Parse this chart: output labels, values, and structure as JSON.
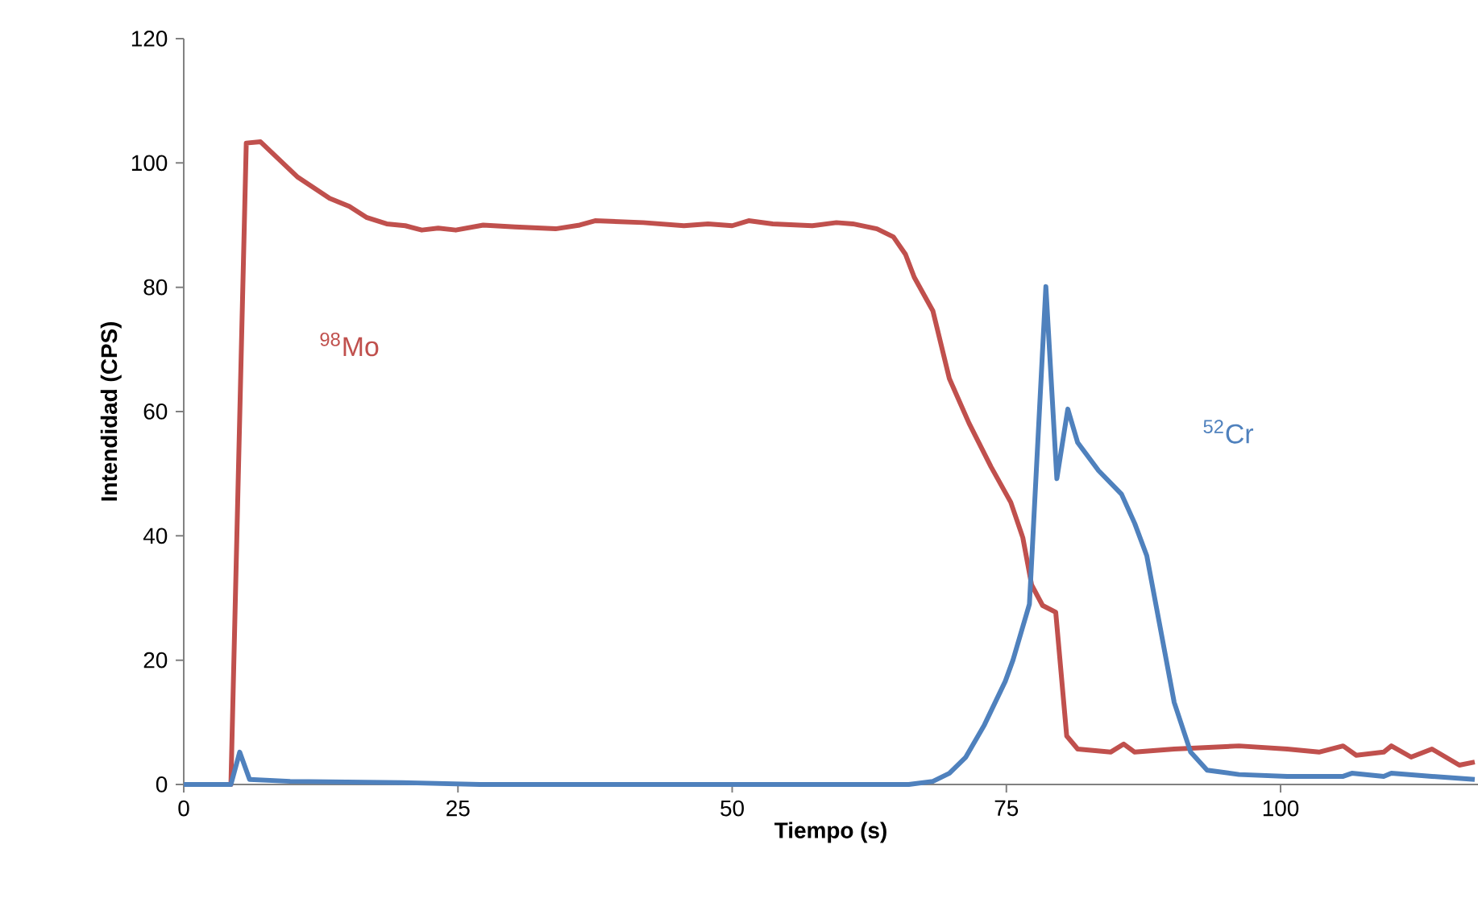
{
  "chart_data": {
    "type": "line",
    "xlabel": "Tiempo (s)",
    "ylabel": "Intendidad (CPS)",
    "xlim": [
      0,
      118
    ],
    "ylim": [
      0,
      120
    ],
    "xticks": [
      0,
      25,
      50,
      75,
      100
    ],
    "yticks": [
      0,
      20,
      40,
      60,
      80,
      100,
      120
    ],
    "grid": false,
    "legend": false,
    "marker": "none",
    "line_style": "solid",
    "series": [
      {
        "name": "$^{98}$Mo",
        "color": "#c0504d",
        "x": [
          0,
          4.3,
          5.7,
          7,
          10.4,
          13.3,
          15.1,
          16.7,
          18.5,
          20.2,
          21.7,
          23.2,
          24.8,
          27.3,
          30.2,
          33.9,
          36.1,
          37.5,
          41.9,
          45.6,
          47.8,
          50,
          51.5,
          53.7,
          57.3,
          59.5,
          61,
          63.2,
          64.7,
          65.8,
          66.6,
          68.3,
          69.8,
          71.6,
          73.6,
          75.4,
          76.5,
          77.3,
          78.3,
          79.5,
          80.5,
          81.5,
          84.5,
          85.7,
          86.7,
          90.3,
          96.2,
          100.6,
          103.5,
          105.7,
          106.9,
          109.4,
          110.1,
          111.9,
          113.8,
          116.3,
          117.7
        ],
        "values": [
          0,
          0,
          103.2,
          103.4,
          97.7,
          94.3,
          93,
          91.2,
          90.2,
          89.9,
          89.2,
          89.5,
          89.2,
          90,
          89.7,
          89.4,
          90,
          90.7,
          90.4,
          89.9,
          90.2,
          89.9,
          90.7,
          90.2,
          89.9,
          90.4,
          90.2,
          89.4,
          88.1,
          85.3,
          81.6,
          76.2,
          65.3,
          58.1,
          51.1,
          45.4,
          39.7,
          32.1,
          28.8,
          27.7,
          7.8,
          5.7,
          5.2,
          6.5,
          5.2,
          5.7,
          6.2,
          5.7,
          5.2,
          6.2,
          4.7,
          5.2,
          6.2,
          4.4,
          5.7,
          3.1,
          3.6
        ]
      },
      {
        "name": "$^{52}$Cr",
        "color": "#4f81bd",
        "x": [
          0,
          4.3,
          5.1,
          6,
          9.7,
          19.9,
          27,
          66.1,
          68.3,
          69.8,
          71.3,
          73,
          74.9,
          75.6,
          77.1,
          78.6,
          79.6,
          80.6,
          81.5,
          83.4,
          85.5,
          86.7,
          87.8,
          90.3,
          91.8,
          93.3,
          96.2,
          100.6,
          105.7,
          106.5,
          109.4,
          110.1,
          113.8,
          117.7
        ],
        "values": [
          0,
          0,
          5.2,
          0.8,
          0.5,
          0.3,
          0,
          0,
          0.5,
          1.8,
          4.4,
          9.6,
          16.6,
          20,
          29,
          80.1,
          49.2,
          60.4,
          55,
          50.5,
          46.7,
          42,
          36.8,
          13.2,
          5.2,
          2.3,
          1.6,
          1.3,
          1.3,
          1.8,
          1.3,
          1.8,
          1.3,
          0.8
        ]
      }
    ]
  }
}
